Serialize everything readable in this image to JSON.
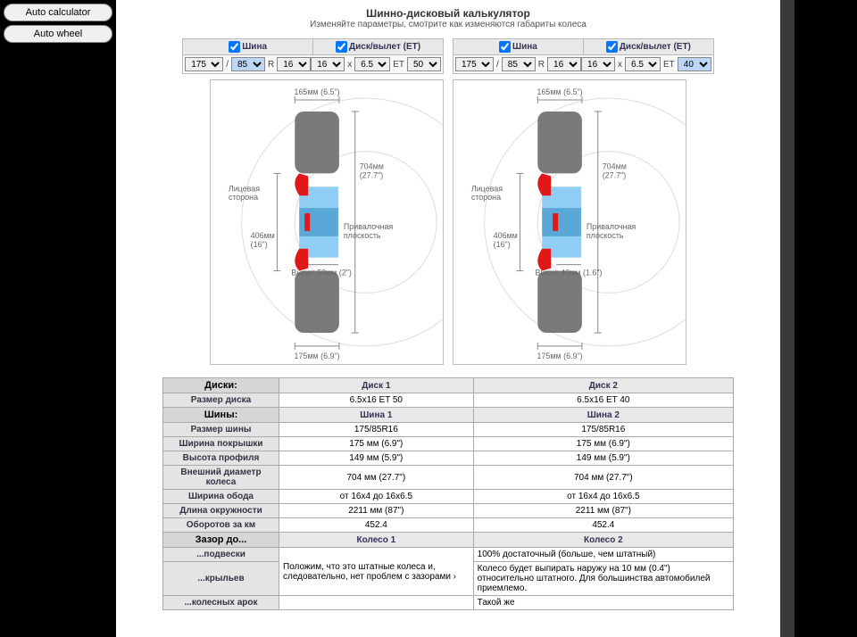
{
  "sidebar": {
    "btn1": "Auto calculator",
    "btn2": "Auto wheel"
  },
  "header": {
    "title": "Шинно-дисковый калькулятор",
    "subtitle": "Изменяйте параметры, смотрите как изменяются габариты колеса"
  },
  "params": {
    "tire_label": "Шина",
    "wheel_label": "Диск/вылет (ET)",
    "slash": "/",
    "R": "R",
    "x": "x",
    "ET": "ET",
    "p1": {
      "w": "175",
      "ar": "85",
      "rim": "16",
      "d": "16",
      "dw": "6.5",
      "et": "50"
    },
    "p2": {
      "w": "175",
      "ar": "85",
      "rim": "16",
      "d": "16",
      "dw": "6.5",
      "et": "40"
    }
  },
  "diagram": {
    "face_side": "Лицевая\nсторона",
    "mount_plane": "Привалочная\nплоскость",
    "d1": {
      "top_width": "165мм (6.5\")",
      "right_h": "704мм\n(27.7\")",
      "left_h": "406мм\n(16\")",
      "offset": "Вылет 50мм (2\")",
      "bottom_w": "175мм (6.9\")"
    },
    "d2": {
      "top_width": "165мм (6.5\")",
      "right_h": "704мм\n(27.7\")",
      "left_h": "406мм\n(16\")",
      "offset": "Вылет 40мм (1.6\")",
      "bottom_w": "175мм (6.9\")"
    },
    "colors": {
      "tire": "#7a7a7a",
      "rim": "#e01818",
      "center": "#6db7e8",
      "dim": "#888888"
    }
  },
  "table": {
    "sect_disk": "Диски:",
    "sect_tire": "Шины:",
    "sect_gap": "Зазор до...",
    "col_d1": "Диск 1",
    "col_d2": "Диск 2",
    "col_t1": "Шина 1",
    "col_t2": "Шина 2",
    "col_w1": "Колесо 1",
    "col_w2": "Колесо 2",
    "rows": {
      "disk_size": {
        "l": "Размер диска",
        "v1": "6.5x16 ET 50",
        "v2": "6.5x16 ET 40"
      },
      "tire_size": {
        "l": "Размер шины",
        "v1": "175/85R16",
        "v2": "175/85R16"
      },
      "tread_w": {
        "l": "Ширина покрышки",
        "v1": "175 мм (6.9\")",
        "v2": "175 мм (6.9\")"
      },
      "profile_h": {
        "l": "Высота профиля",
        "v1": "149 мм (5.9\")",
        "v2": "149 мм (5.9\")"
      },
      "outer_d": {
        "l": "Внешний диаметр колеса",
        "v1": "704 мм (27.7\")",
        "v2": "704 мм (27.7\")"
      },
      "rim_w": {
        "l": "Ширина обода",
        "v1": "от 16x4 до 16x6.5",
        "v2": "от 16x4 до 16x6.5"
      },
      "circ": {
        "l": "Длина окружности",
        "v1": "2211 мм (87\")",
        "v2": "2211 мм (87\")"
      },
      "rpm": {
        "l": "Оборотов за км",
        "v1": "452.4",
        "v2": "452.4"
      },
      "susp": {
        "l": "...подвески",
        "v1": "Положим, что это штатные колеса и, следовательно, нет проблем с зазорами ›",
        "v2a": "100% достаточный (больше, чем штатный)",
        "v2b": "Колесо будет выпирать наружу на 10 мм (0.4\") относительно штатного. Для большинства автомобилей приемлемо."
      },
      "fender": {
        "l": "...крыльев"
      },
      "arch": {
        "l": "...колесных арок",
        "v2": "Такой же"
      }
    }
  }
}
